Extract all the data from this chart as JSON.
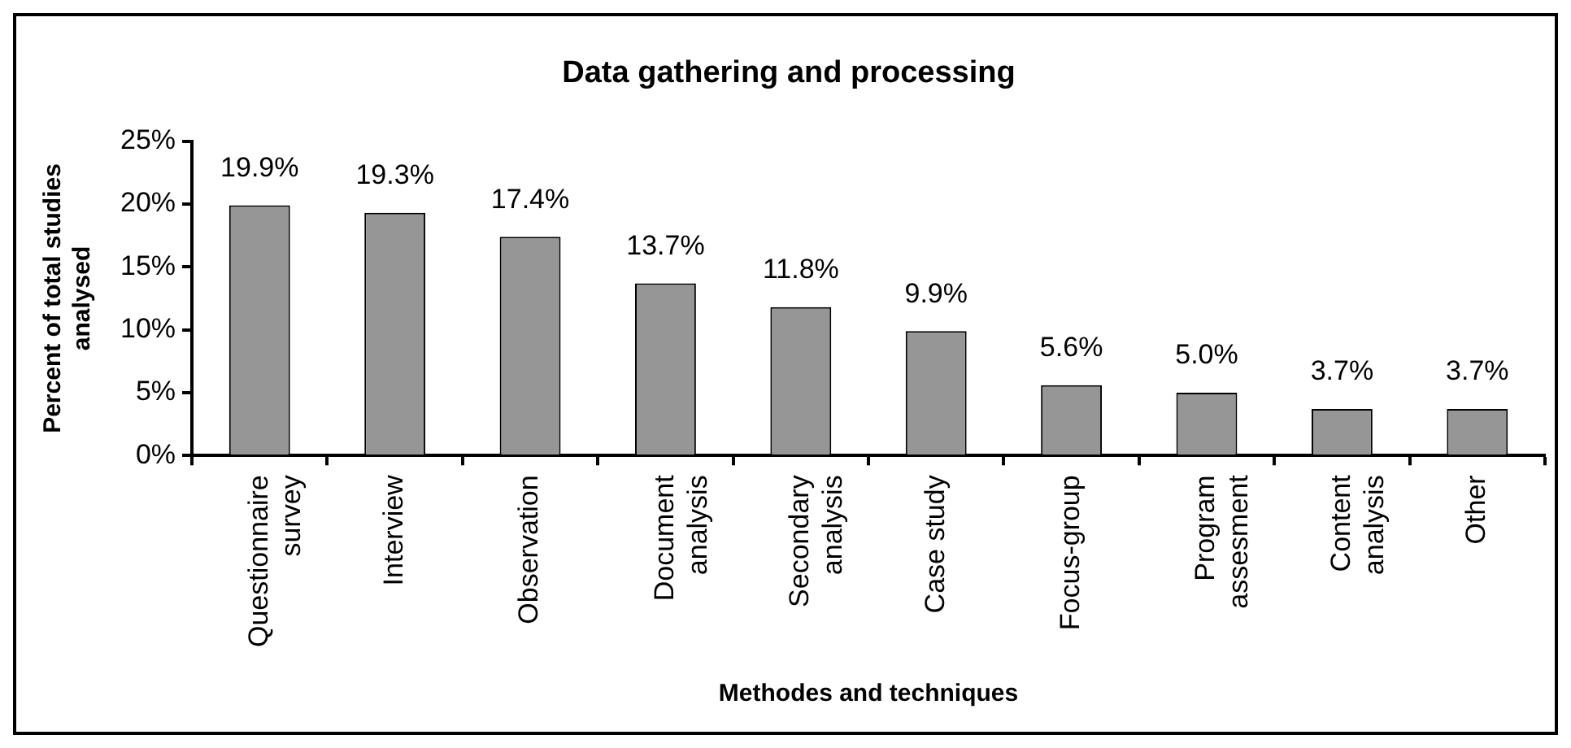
{
  "chart_data": {
    "type": "bar",
    "title": "Data gathering and processing",
    "xlabel": "Methodes and techniques",
    "ylabel": "Percent of total studies analysed",
    "categories": [
      "Questionnaire survey",
      "Interview",
      "Observation",
      "Document analysis",
      "Secondary analysis",
      "Case study",
      "Focus-group",
      "Program assesment",
      "Content analysis",
      "Other"
    ],
    "values": [
      19.9,
      19.3,
      17.4,
      13.7,
      11.8,
      9.9,
      5.6,
      5.0,
      3.7,
      3.7
    ],
    "value_labels": [
      "19.9%",
      "19.3%",
      "17.4%",
      "13.7%",
      "11.8%",
      "9.9%",
      "5.6%",
      "5.0%",
      "3.7%",
      "3.7%"
    ],
    "color": "#969696",
    "ylim": [
      0,
      25
    ],
    "yticks": [
      {
        "value": 0,
        "label": "0%"
      },
      {
        "value": 5,
        "label": "5%"
      },
      {
        "value": 10,
        "label": "10%"
      },
      {
        "value": 15,
        "label": "15%"
      },
      {
        "value": 20,
        "label": "20%"
      },
      {
        "value": 25,
        "label": "25%"
      }
    ],
    "grid": false,
    "legend": false
  }
}
